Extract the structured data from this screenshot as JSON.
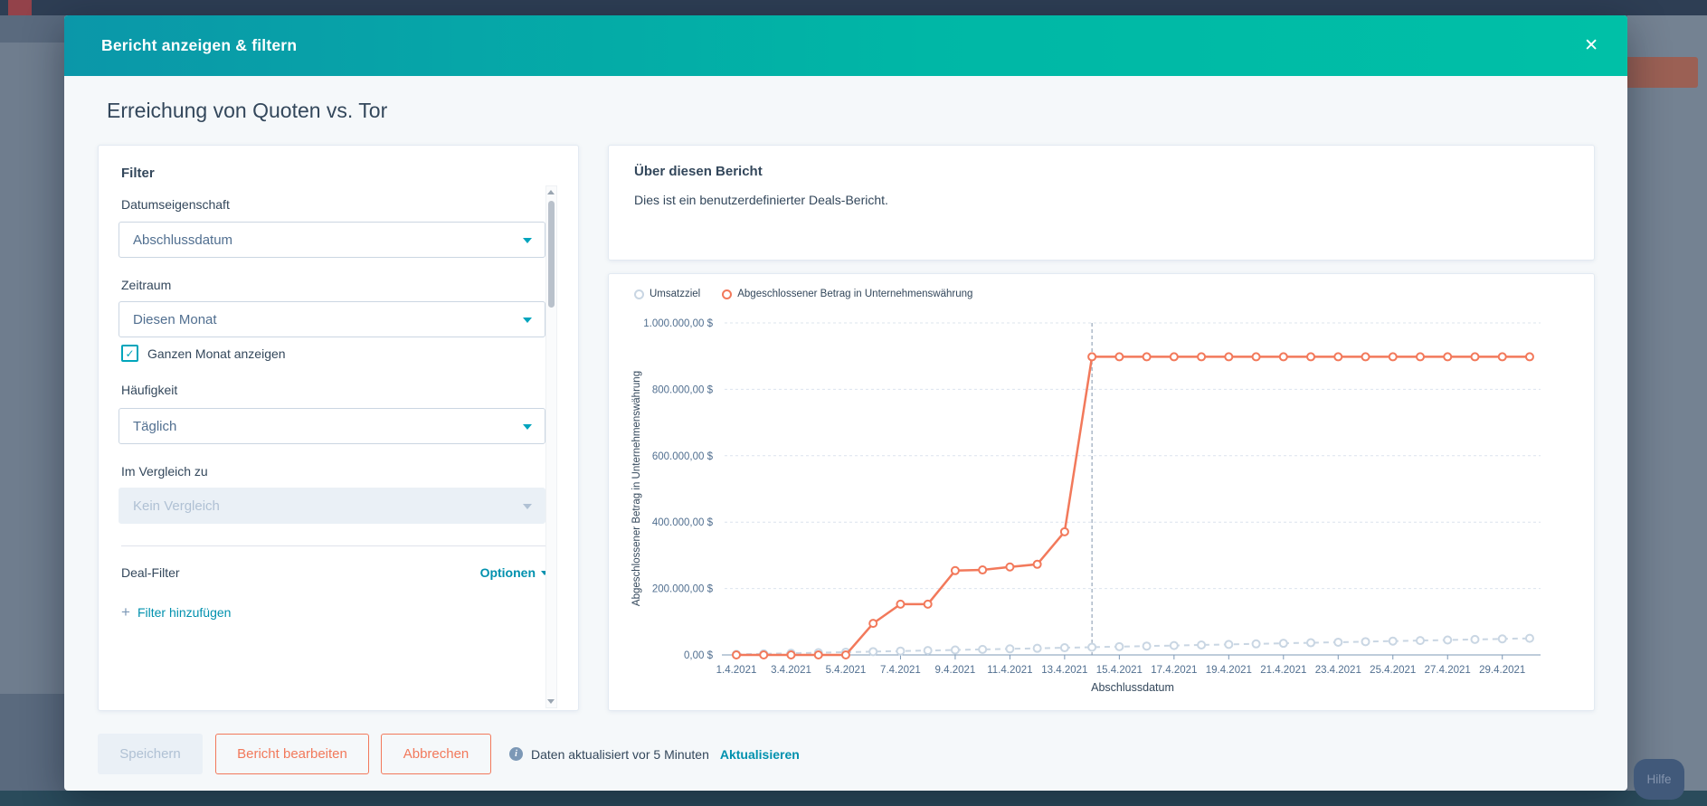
{
  "chrome": {
    "help_button_label": "Hilfe"
  },
  "modal": {
    "title": "Bericht anzeigen & filtern",
    "close_icon": "✕",
    "report_title": "Erreichung von Quoten vs. Tor",
    "filter_panel": {
      "heading": "Filter",
      "date_property_label": "Datumseigenschaft",
      "date_property_value": "Abschlussdatum",
      "range_label": "Zeitraum",
      "range_value": "Diesen Monat",
      "full_month_label": "Ganzen Monat anzeigen",
      "full_month_checked": true,
      "frequency_label": "Häufigkeit",
      "frequency_value": "Täglich",
      "compare_label": "Im Vergleich zu",
      "compare_value": "Kein Vergleich",
      "compare_disabled": true,
      "deal_filter_label": "Deal-Filter",
      "options_label": "Optionen",
      "add_filter_label": "Filter hinzufügen",
      "plus_glyph": "+",
      "check_glyph": "✓"
    },
    "about_panel": {
      "heading": "Über diesen Bericht",
      "description": "Dies ist ein benutzerdefinierter Deals-Bericht."
    },
    "footer": {
      "save_label": "Speichern",
      "edit_label": "Bericht bearbeiten",
      "cancel_label": "Abbrechen",
      "info_glyph": "i",
      "status_text": "Daten aktualisiert vor 5 Minuten",
      "refresh_label": "Aktualisieren"
    }
  },
  "chart_data": {
    "type": "line",
    "xlabel": "Abschlussdatum",
    "ylabel": "Abgeschlossener Betrag in Unternehmenswährung",
    "dates": [
      "1.4.2021",
      "2.4.2021",
      "3.4.2021",
      "4.4.2021",
      "5.4.2021",
      "6.4.2021",
      "7.4.2021",
      "8.4.2021",
      "9.4.2021",
      "10.4.2021",
      "11.4.2021",
      "12.4.2021",
      "13.4.2021",
      "14.4.2021",
      "15.4.2021",
      "16.4.2021",
      "17.4.2021",
      "18.4.2021",
      "19.4.2021",
      "20.4.2021",
      "21.4.2021",
      "22.4.2021",
      "23.4.2021",
      "24.4.2021",
      "25.4.2021",
      "26.4.2021",
      "27.4.2021",
      "28.4.2021",
      "29.4.2021",
      "30.4.2021"
    ],
    "x_tick_labels": [
      "1.4.2021",
      "3.4.2021",
      "5.4.2021",
      "7.4.2021",
      "9.4.2021",
      "11.4.2021",
      "13.4.2021",
      "15.4.2021",
      "17.4.2021",
      "19.4.2021",
      "21.4.2021",
      "23.4.2021",
      "25.4.2021",
      "27.4.2021",
      "29.4.2021"
    ],
    "ylim": [
      0,
      1000000
    ],
    "y_ticks": [
      0,
      200000,
      400000,
      600000,
      800000,
      1000000
    ],
    "y_tick_suffix": " $",
    "grid": true,
    "legend_position": "top-left",
    "today_marker_date": "14.4.2021",
    "series": [
      {
        "name": "Umsatzziel",
        "color": "#c9d6e3",
        "line_style": "dashed",
        "values": [
          1700,
          3300,
          5000,
          6700,
          8300,
          10000,
          11700,
          13300,
          15000,
          16700,
          18300,
          20000,
          21700,
          23300,
          25000,
          26700,
          28300,
          30000,
          31700,
          33300,
          35000,
          36700,
          38300,
          40000,
          41700,
          43300,
          45000,
          46700,
          48300,
          50000
        ]
      },
      {
        "name": "Abgeschlossener Betrag in Unternehmenswährung",
        "color": "#f2795b",
        "line_style": "solid",
        "values": [
          0,
          0,
          0,
          0,
          0,
          95000,
          153000,
          153000,
          254000,
          256000,
          265000,
          273000,
          371000,
          898000,
          898000,
          898000,
          898000,
          898000,
          898000,
          898000,
          898000,
          898000,
          898000,
          898000,
          898000,
          898000,
          898000,
          898000,
          898000,
          898000
        ]
      }
    ]
  },
  "colors": {
    "header_gradient_start": "#0b97a9",
    "header_gradient_end": "#00c0a7",
    "accent_teal": "#00a4bd",
    "link_teal": "#0091ae",
    "orange": "#f2795b",
    "text_dark": "#33475b",
    "text_secondary": "#516f90",
    "disabled_text": "#b0c1d4",
    "disabled_bg": "#eaf0f6",
    "input_border": "#cbd6e2",
    "grid_line": "#dce4ee",
    "today_line": "#8296ad"
  }
}
